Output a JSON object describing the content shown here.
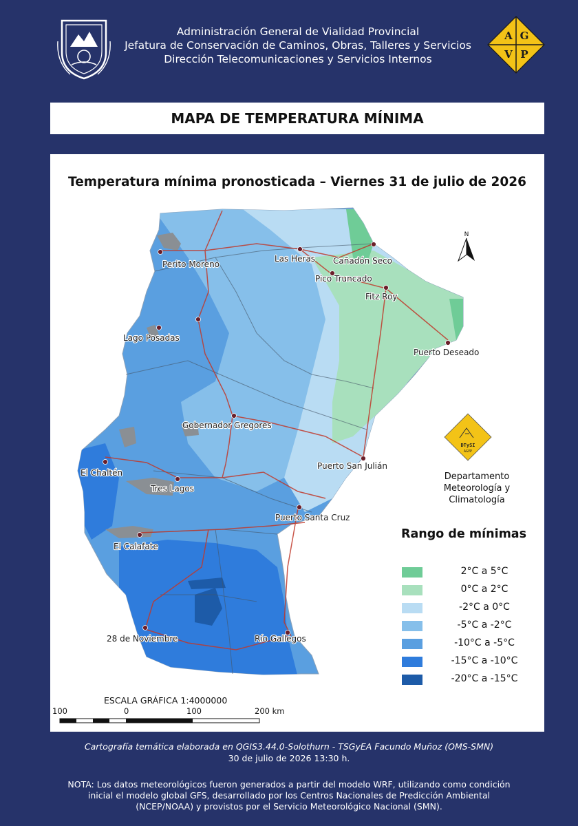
{
  "header": {
    "line1": "Administración General de Vialidad Provincial",
    "line2": "Jefatura de Conservación de Caminos, Obras, Talleres y Servicios",
    "line3": "Dirección Telecomunicaciones y Servicios Internos",
    "logo_letters": [
      "A",
      "G",
      "V",
      "P"
    ],
    "logo_color": "#f3c317"
  },
  "title": "MAPA DE TEMPERATURA MÍNIMA",
  "map": {
    "subtitle": "Temperatura mínima pronosticada – Viernes 31 de julio de 2026",
    "north_label": "N",
    "cities": [
      {
        "name": "Perito Moreno"
      },
      {
        "name": "Las Heras"
      },
      {
        "name": "Cañadón Seco"
      },
      {
        "name": "Pico Truncado"
      },
      {
        "name": "Fitz Roy"
      },
      {
        "name": "Lago Posadas"
      },
      {
        "name": "Puerto Deseado"
      },
      {
        "name": "Gobernador Gregores"
      },
      {
        "name": "El Chaltén"
      },
      {
        "name": "Puerto San Julián"
      },
      {
        "name": "Tres Lagos"
      },
      {
        "name": "Puerto Santa Cruz"
      },
      {
        "name": "El Calafate"
      },
      {
        "name": "28 de Noviembre"
      },
      {
        "name": "Río Gallegos"
      }
    ]
  },
  "department": {
    "line1": "Departamento",
    "line2": "Meteorología y Climatología",
    "logo_text": "DTySI",
    "logo_subtext": "AGVP"
  },
  "legend": {
    "title": "Rango  de mínimas",
    "items": [
      {
        "label": "2°C a 5°C",
        "color": "#6fcc97"
      },
      {
        "label": "0°C a 2°C",
        "color": "#a8e0bd"
      },
      {
        "label": "-2°C a 0°C",
        "color": "#b9dcf3"
      },
      {
        "label": "-5°C a -2°C",
        "color": "#86bfea"
      },
      {
        "label": "-10°C a -5°C",
        "color": "#5a9fe0"
      },
      {
        "label": "-15°C a -10°C",
        "color": "#2f7cdc"
      },
      {
        "label": "-20°C a -15°C",
        "color": "#1d5ba8"
      }
    ]
  },
  "scale": {
    "title": "ESCALA GRÁFICA 1:4000000",
    "labels": [
      "100",
      "0",
      "100",
      "200 km"
    ]
  },
  "footer": {
    "line1": "Cartografía temática elaborada en QGIS3.44.0-Solothurn - TSGyEA Facundo Muñoz (OMS-SMN)",
    "line2": "30 de julio de 2026 13:30 h.",
    "note": "NOTA: Los datos meteorológicos fueron generados a partir del modelo WRF, utilizando como condición inicial el modelo global GFS, desarrollado por los Centros Nacionales de Predicción Ambiental (NCEP/NOAA) y provistos por el Servicio Meteorológico Nacional (SMN)."
  }
}
